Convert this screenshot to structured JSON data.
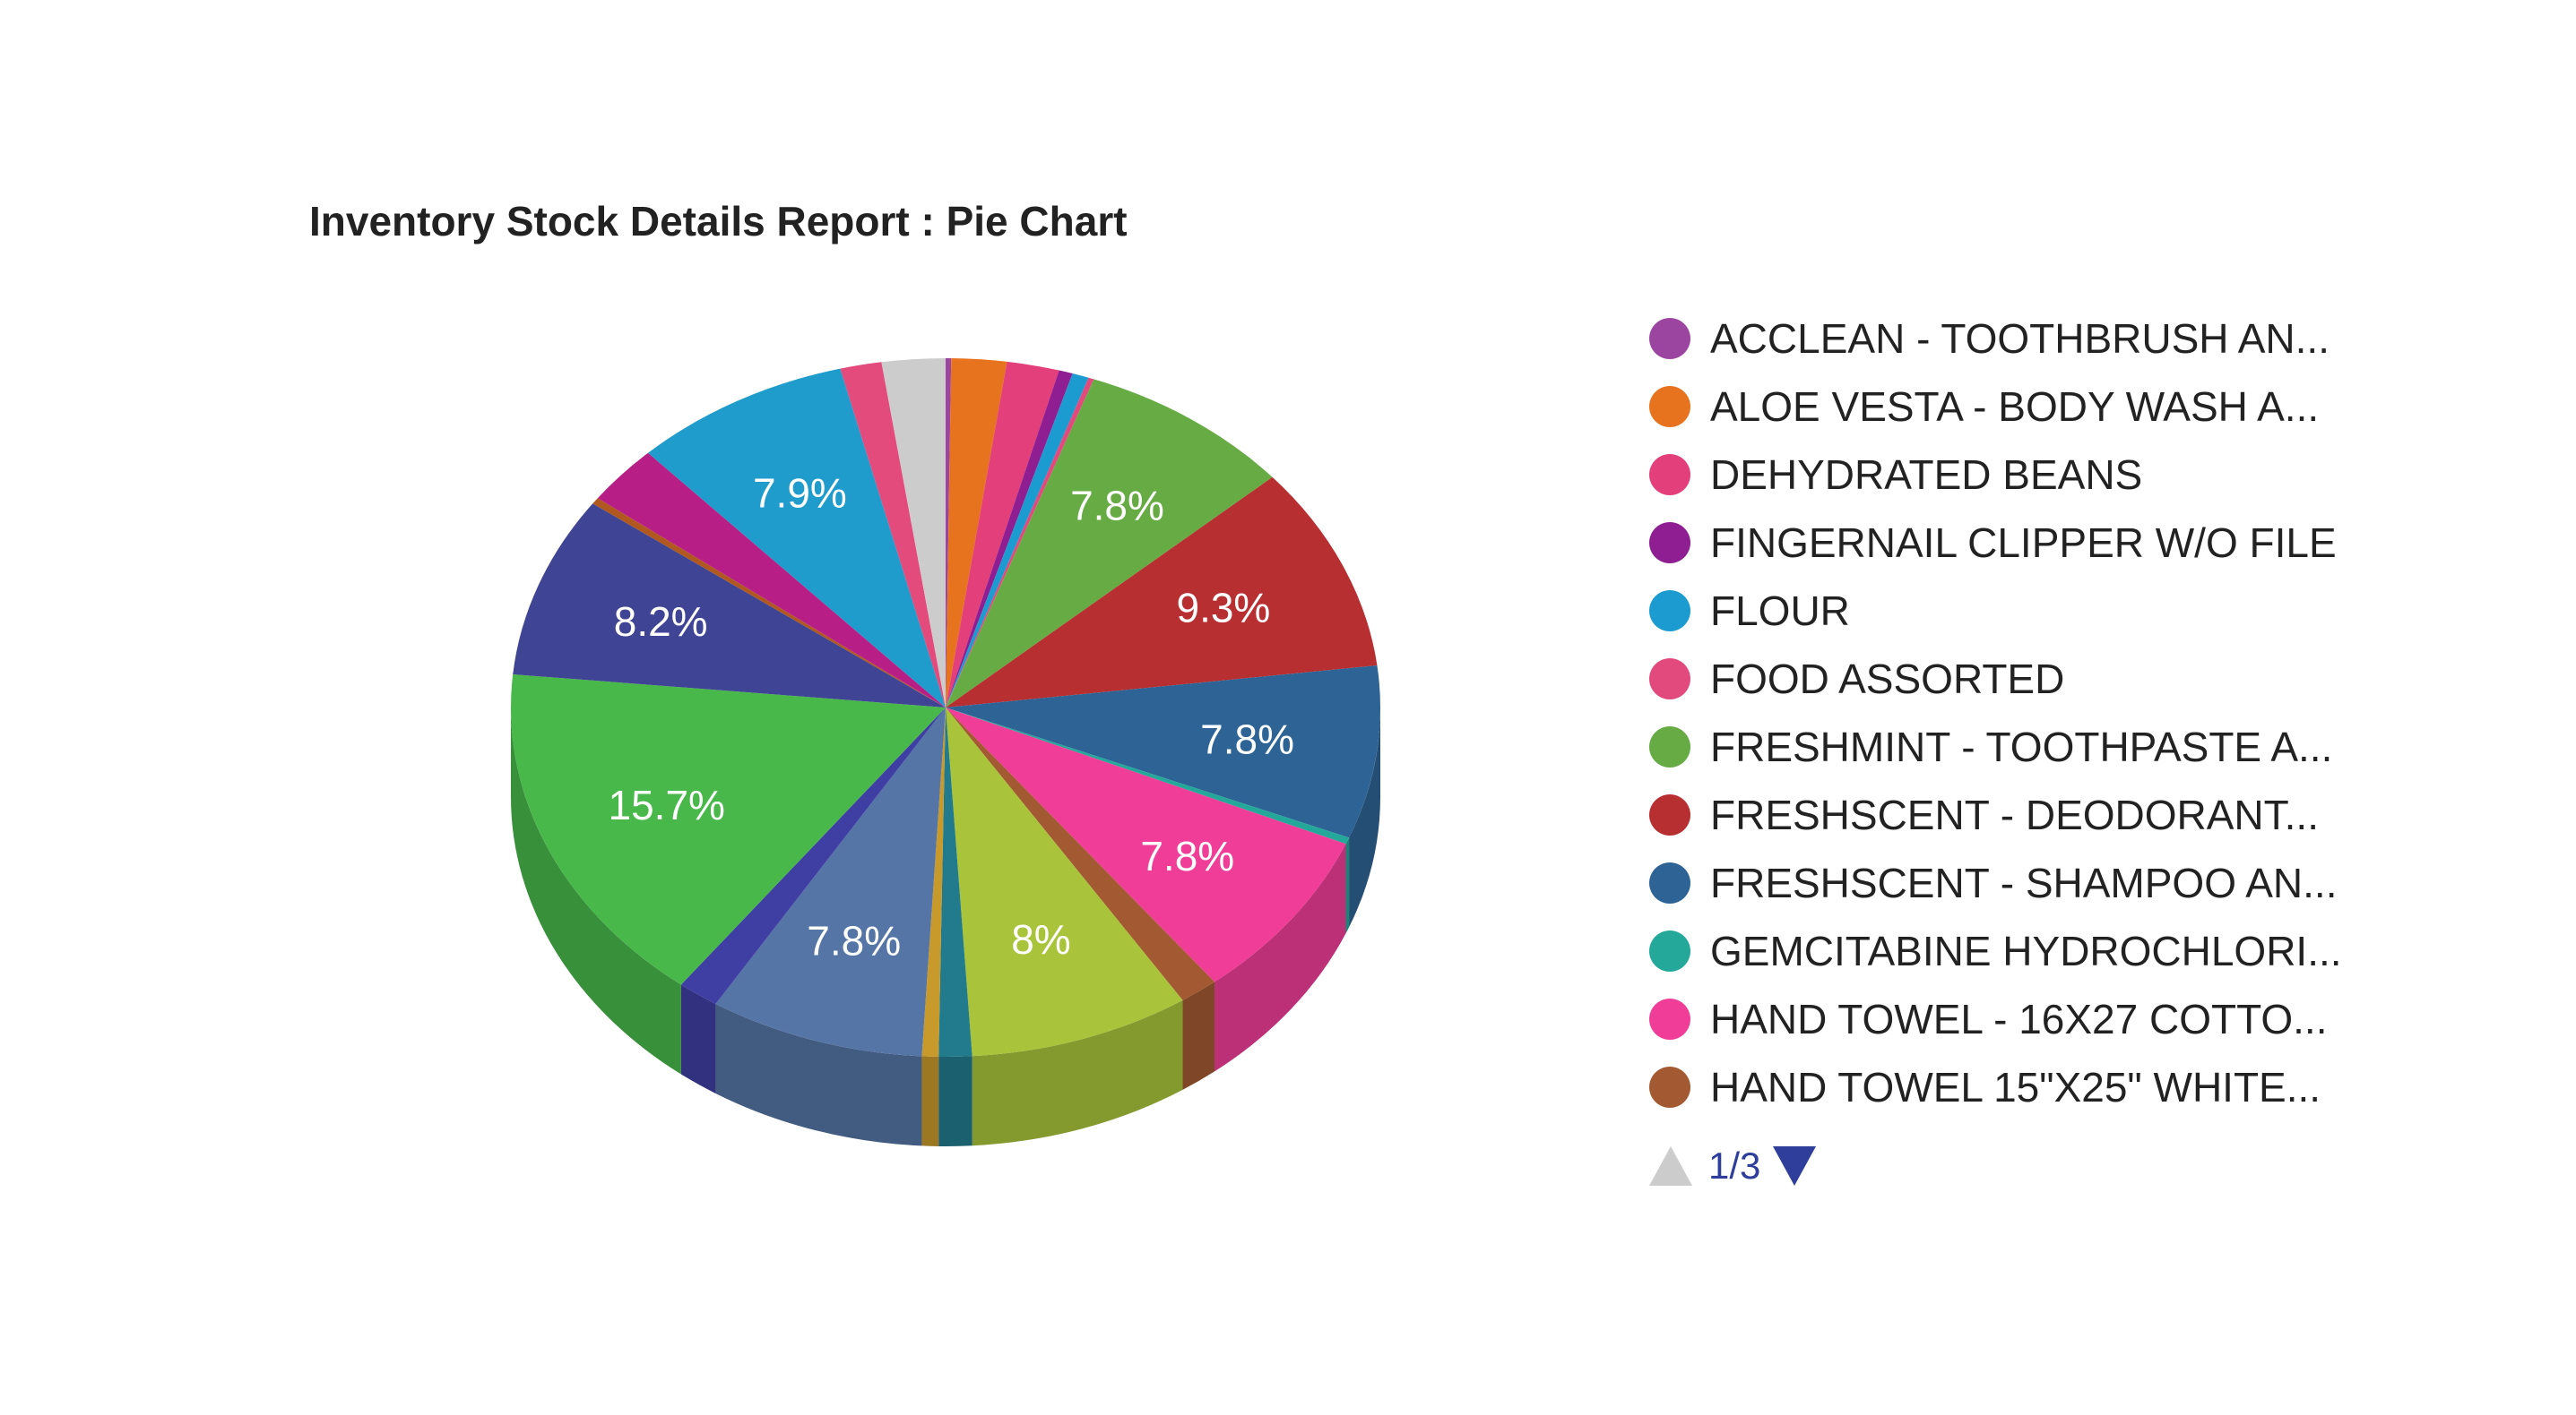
{
  "chart_data": {
    "type": "pie",
    "title": "Inventory Stock Details Report : Pie Chart",
    "is_3d": true,
    "legend_position": "right",
    "slices": [
      {
        "label": "ACCLEAN - TOOTHBRUSH AN...",
        "value": 0.2,
        "color": "#9b45a1",
        "data_label": ""
      },
      {
        "label": "ALOE VESTA - BODY WASH A...",
        "value": 2.0,
        "color": "#e8731f",
        "data_label": ""
      },
      {
        "label": "DEHYDRATED BEANS",
        "value": 1.9,
        "color": "#e33f7a",
        "data_label": ""
      },
      {
        "label": "FINGERNAIL CLIPPER W/O FILE",
        "value": 0.5,
        "color": "#8e1e91",
        "data_label": ""
      },
      {
        "label": "FLOUR",
        "value": 0.6,
        "color": "#1c9bd1",
        "data_label": ""
      },
      {
        "label": "FOOD ASSORTED",
        "value": 0.2,
        "color": "#e24a7d",
        "data_label": ""
      },
      {
        "label": "FRESHMINT - TOOTHPASTE A...",
        "value": 7.8,
        "color": "#67ab45",
        "data_label": "7.8%"
      },
      {
        "label": "FRESHSCENT - DEODORANT...",
        "value": 9.3,
        "color": "#b82f32",
        "data_label": "9.3%"
      },
      {
        "label": "FRESHSCENT - SHAMPOO AN...",
        "value": 7.8,
        "color": "#2e6495",
        "data_label": "7.8%"
      },
      {
        "label": "GEMCITABINE HYDROCHLORI...",
        "value": 0.3,
        "color": "#24a89a",
        "data_label": ""
      },
      {
        "label": "HAND TOWEL - 16X27 COTTO...",
        "value": 7.8,
        "color": "#f03d97",
        "data_label": "7.8%"
      },
      {
        "label": "HAND TOWEL 15\"X25\" WHITE...",
        "value": 1.4,
        "color": "#a35a33",
        "data_label": ""
      },
      {
        "label": "",
        "value": 8.0,
        "color": "#a9c43b",
        "data_label": "8%"
      },
      {
        "label": "",
        "value": 1.2,
        "color": "#217b8d",
        "data_label": ""
      },
      {
        "label": "",
        "value": 0.6,
        "color": "#c89a2b",
        "data_label": ""
      },
      {
        "label": "",
        "value": 7.8,
        "color": "#5575a6",
        "data_label": "7.8%"
      },
      {
        "label": "",
        "value": 1.5,
        "color": "#3f3fa3",
        "data_label": ""
      },
      {
        "label": "",
        "value": 15.7,
        "color": "#48b84a",
        "data_label": "15.7%"
      },
      {
        "label": "",
        "value": 8.2,
        "color": "#404494",
        "data_label": "8.2%"
      },
      {
        "label": "",
        "value": 0.3,
        "color": "#b0581f",
        "data_label": ""
      },
      {
        "label": "",
        "value": 2.7,
        "color": "#b81f86",
        "data_label": ""
      },
      {
        "label": "",
        "value": 7.9,
        "color": "#1f9ccc",
        "data_label": "7.9%"
      },
      {
        "label": "",
        "value": 1.5,
        "color": "#e24b7c",
        "data_label": ""
      },
      {
        "label": "",
        "value": 2.3,
        "color": "#cccccc",
        "data_label": ""
      }
    ]
  },
  "legend": {
    "visible_count": 12,
    "pager_text": "1/3"
  }
}
